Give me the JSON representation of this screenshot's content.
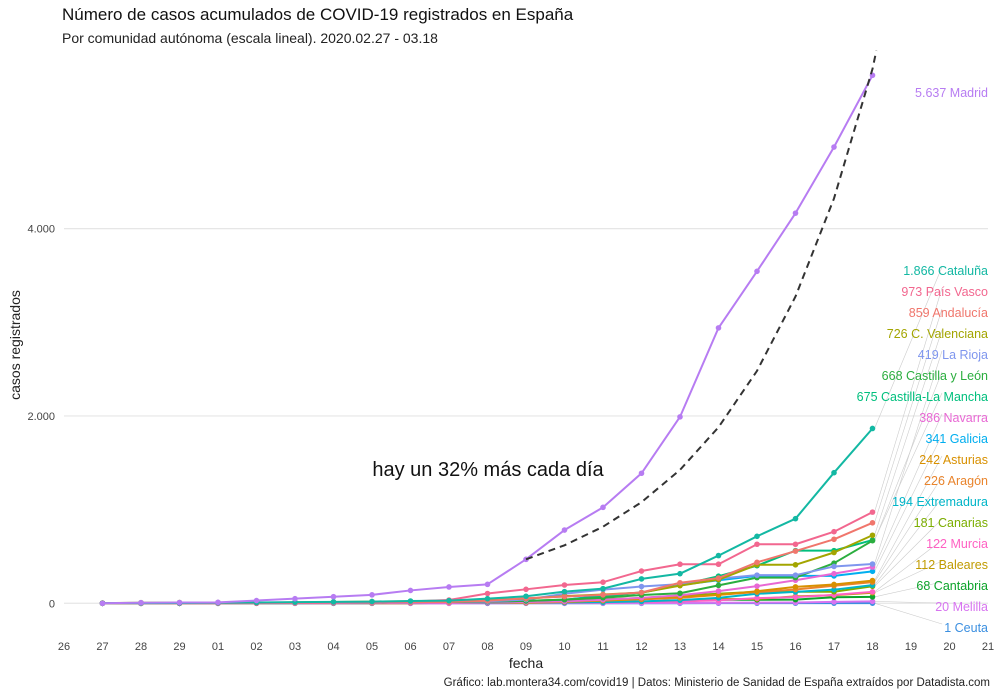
{
  "header": {
    "title": "Número de casos acumulados de COVID-19 registrados en España",
    "subtitle": "Por comunidad autónoma (escala lineal). 2020.02.27 - 03.18"
  },
  "caption": "Gráfico: lab.montera34.com/covid19 | Datos: Ministerio de Sanidad de España extraídos por Datadista.com",
  "chart_data": {
    "type": "line",
    "title": "Número de casos acumulados de COVID-19 registrados en España",
    "xlabel": "fecha",
    "ylabel": "casos registrados",
    "xlim": [
      0,
      24
    ],
    "ylim": [
      -200,
      5800
    ],
    "grid": true,
    "legend": "direct labels at right",
    "x_ticks": [
      {
        "pos": 0,
        "label": "26"
      },
      {
        "pos": 1,
        "label": "27"
      },
      {
        "pos": 2,
        "label": "28"
      },
      {
        "pos": 3,
        "label": "29"
      },
      {
        "pos": 4,
        "label": "01"
      },
      {
        "pos": 5,
        "label": "02"
      },
      {
        "pos": 6,
        "label": "03"
      },
      {
        "pos": 7,
        "label": "04"
      },
      {
        "pos": 8,
        "label": "05"
      },
      {
        "pos": 9,
        "label": "06"
      },
      {
        "pos": 10,
        "label": "07"
      },
      {
        "pos": 11,
        "label": "08"
      },
      {
        "pos": 12,
        "label": "09"
      },
      {
        "pos": 13,
        "label": "10"
      },
      {
        "pos": 14,
        "label": "11"
      },
      {
        "pos": 15,
        "label": "12"
      },
      {
        "pos": 16,
        "label": "13"
      },
      {
        "pos": 17,
        "label": "14"
      },
      {
        "pos": 18,
        "label": "15"
      },
      {
        "pos": 19,
        "label": "16"
      },
      {
        "pos": 20,
        "label": "17"
      },
      {
        "pos": 21,
        "label": "18"
      },
      {
        "pos": 22,
        "label": "19"
      },
      {
        "pos": 23,
        "label": "20"
      },
      {
        "pos": 24,
        "label": "21"
      }
    ],
    "y_ticks": [
      {
        "value": 0,
        "label": "0"
      },
      {
        "value": 2000,
        "label": "2.000"
      },
      {
        "value": 4000,
        "label": "4.000"
      }
    ],
    "x": [
      1,
      2,
      3,
      4,
      5,
      6,
      7,
      8,
      9,
      10,
      11,
      12,
      13,
      14,
      15,
      16,
      17,
      18,
      19,
      20,
      21
    ],
    "series": [
      {
        "name": "Madrid",
        "label": "5.637 Madrid",
        "label_value": 5637,
        "color": "#b77cf2",
        "values": [
          0,
          6,
          8,
          10,
          29,
          49,
          70,
          90,
          137,
          174,
          202,
          469,
          782,
          1024,
          1388,
          1990,
          2940,
          3544,
          4165,
          4871,
          5637
        ]
      },
      {
        "name": "Cataluña",
        "label": "1.866 Cataluña",
        "label_value": 1866,
        "color": "#13b8a3",
        "values": [
          1,
          2,
          3,
          5,
          8,
          12,
          15,
          18,
          24,
          28,
          49,
          75,
          124,
          156,
          260,
          316,
          509,
          715,
          903,
          1394,
          1866
        ]
      },
      {
        "name": "País Vasco",
        "label": "973 País Vasco",
        "label_value": 973,
        "color": "#f2678f",
        "values": [
          0,
          0,
          0,
          0,
          1,
          3,
          6,
          9,
          20,
          35,
          104,
          149,
          195,
          225,
          344,
          417,
          417,
          630,
          630,
          764,
          973
        ]
      },
      {
        "name": "Andalucía",
        "label": "859 Andalucía",
        "label_value": 859,
        "color": "#f0766c",
        "values": [
          1,
          1,
          1,
          1,
          1,
          4,
          7,
          7,
          12,
          13,
          27,
          54,
          71,
          90,
          115,
          219,
          269,
          437,
          557,
          683,
          859
        ]
      },
      {
        "name": "C. Valenciana",
        "label": "726 C. Valenciana",
        "label_value": 726,
        "color": "#a3a500",
        "values": [
          0,
          1,
          2,
          3,
          6,
          10,
          14,
          18,
          20,
          30,
          37,
          50,
          76,
          94,
          113,
          188,
          252,
          411,
          411,
          542,
          726
        ]
      },
      {
        "name": "La Rioja",
        "label": "419 La Rioja",
        "label_value": 419,
        "color": "#7f96ee",
        "values": [
          0,
          0,
          1,
          1,
          1,
          1,
          3,
          6,
          11,
          20,
          22,
          39,
          102,
          146,
          179,
          204,
          263,
          300,
          300,
          393,
          419
        ]
      },
      {
        "name": "Castilla y León",
        "label": "668 Castilla y León",
        "label_value": 668,
        "color": "#2bae3f",
        "values": [
          0,
          0,
          0,
          1,
          2,
          3,
          4,
          6,
          12,
          16,
          19,
          25,
          39,
          59,
          88,
          107,
          191,
          274,
          274,
          428,
          668
        ]
      },
      {
        "name": "Castilla-La Mancha",
        "label": "675 Castilla-La Mancha",
        "label_value": 675,
        "color": "#00bf7d",
        "values": [
          0,
          0,
          0,
          0,
          1,
          2,
          4,
          6,
          12,
          13,
          17,
          26,
          39,
          72,
          115,
          194,
          289,
          401,
          562,
          562,
          675
        ]
      },
      {
        "name": "Navarra",
        "label": "386 Navarra",
        "label_value": 386,
        "color": "#e868d4",
        "values": [
          0,
          0,
          0,
          1,
          1,
          1,
          2,
          3,
          3,
          3,
          9,
          13,
          20,
          37,
          58,
          86,
          130,
          183,
          246,
          316,
          386
        ]
      },
      {
        "name": "Galicia",
        "label": "341 Galicia",
        "label_value": 341,
        "color": "#00aeef",
        "values": [
          0,
          0,
          0,
          1,
          1,
          1,
          1,
          2,
          3,
          6,
          6,
          18,
          35,
          85,
          115,
          195,
          245,
          292,
          292,
          292,
          341
        ]
      },
      {
        "name": "Asturias",
        "label": "242 Asturias",
        "label_value": 242,
        "color": "#d89000",
        "values": [
          0,
          0,
          0,
          1,
          1,
          1,
          1,
          1,
          2,
          5,
          6,
          7,
          14,
          29,
          49,
          69,
          90,
          129,
          175,
          201,
          242
        ]
      },
      {
        "name": "Aragón",
        "label": "226 Aragón",
        "label_value": 226,
        "color": "#e9842c",
        "values": [
          0,
          0,
          0,
          1,
          1,
          1,
          1,
          1,
          2,
          4,
          7,
          13,
          19,
          28,
          42,
          58,
          90,
          120,
          147,
          187,
          226
        ]
      },
      {
        "name": "Extremadura",
        "label": "194 Extremadura",
        "label_value": 194,
        "color": "#00b5c8",
        "values": [
          0,
          0,
          0,
          0,
          1,
          3,
          4,
          6,
          6,
          7,
          7,
          7,
          8,
          12,
          20,
          33,
          58,
          101,
          121,
          145,
          194
        ]
      },
      {
        "name": "Canarias",
        "label": "181 Canarias",
        "label_value": 181,
        "color": "#7cae00",
        "values": [
          2,
          6,
          7,
          7,
          8,
          8,
          10,
          11,
          11,
          12,
          17,
          21,
          23,
          41,
          56,
          82,
          102,
          123,
          123,
          123,
          181
        ]
      },
      {
        "name": "Murcia",
        "label": "122 Murcia",
        "label_value": 122,
        "color": "#ff61c3",
        "values": [
          0,
          0,
          0,
          1,
          1,
          1,
          1,
          1,
          2,
          2,
          5,
          6,
          8,
          10,
          15,
          20,
          32,
          55,
          65,
          89,
          122
        ]
      },
      {
        "name": "Baleares",
        "label": "112 Baleares",
        "label_value": 112,
        "color": "#c09b00",
        "values": [
          2,
          2,
          2,
          2,
          2,
          3,
          3,
          3,
          6,
          6,
          6,
          7,
          11,
          16,
          16,
          31,
          46,
          46,
          74,
          85,
          112
        ]
      },
      {
        "name": "Cantabria",
        "label": "68 Cantabria",
        "label_value": 68,
        "color": "#0ca32a",
        "values": [
          0,
          0,
          0,
          1,
          1,
          1,
          1,
          1,
          2,
          4,
          5,
          8,
          10,
          12,
          17,
          21,
          37,
          37,
          39,
          64,
          68
        ]
      },
      {
        "name": "Melilla",
        "label": "20 Melilla",
        "label_value": 20,
        "color": "#d774f0",
        "values": [
          0,
          0,
          0,
          0,
          0,
          0,
          0,
          0,
          0,
          0,
          0,
          1,
          2,
          2,
          2,
          3,
          5,
          7,
          8,
          15,
          20
        ]
      },
      {
        "name": "Ceuta",
        "label": "1 Ceuta",
        "label_value": 1,
        "color": "#3b8fe0",
        "values": [
          0,
          0,
          0,
          0,
          0,
          0,
          0,
          0,
          0,
          0,
          0,
          0,
          0,
          0,
          0,
          0,
          1,
          1,
          1,
          1,
          1
        ]
      }
    ],
    "trend": {
      "annotation": "hay un 32% más cada día",
      "growth_rate": 0.32,
      "x": [
        12,
        13,
        14,
        15,
        16,
        17,
        18,
        19,
        20,
        21,
        21.1
      ],
      "values": [
        469,
        619,
        817,
        1079,
        1424,
        1879,
        2481,
        3275,
        4322,
        5705,
        5900
      ],
      "color": "#333333",
      "style": "dashed"
    }
  }
}
